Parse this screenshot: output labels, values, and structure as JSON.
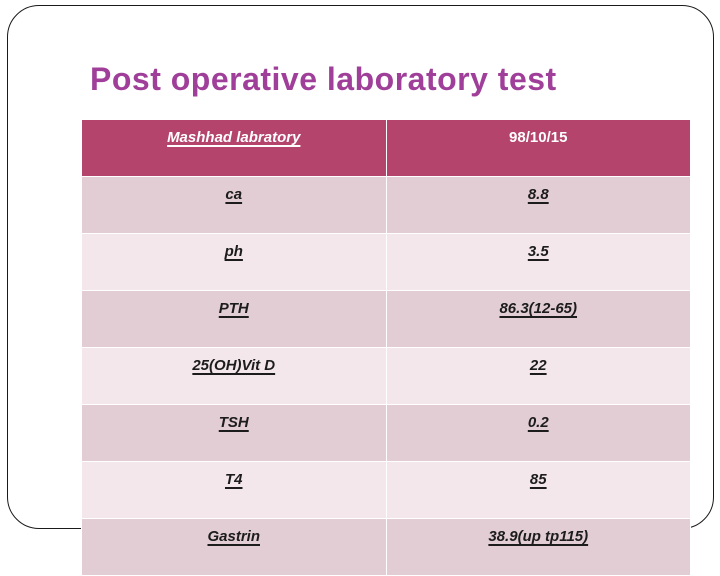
{
  "slide": {
    "title": "Post operative laboratory test"
  },
  "table": {
    "header": {
      "col1": "Mashhad labratory",
      "col2": "98/10/15"
    },
    "rows": [
      {
        "label": "ca",
        "value": "8.8"
      },
      {
        "label": "ph",
        "value": "3.5"
      },
      {
        "label": "PTH",
        "value": "86.3(12-65)"
      },
      {
        "label": "25(OH)Vit D",
        "value": "22"
      },
      {
        "label": "TSH",
        "value": "0.2"
      },
      {
        "label": "T4",
        "value": "85"
      },
      {
        "label": "Gastrin",
        "value": "38.9(up tp115)"
      }
    ],
    "colors": {
      "title_color": "#a03f9a",
      "header_bg": "#b4446c",
      "header_text": "#ffffff",
      "row_dark": "#e2cdd5",
      "row_light": "#f3e7ec",
      "row_text": "#1c1c1c"
    }
  }
}
